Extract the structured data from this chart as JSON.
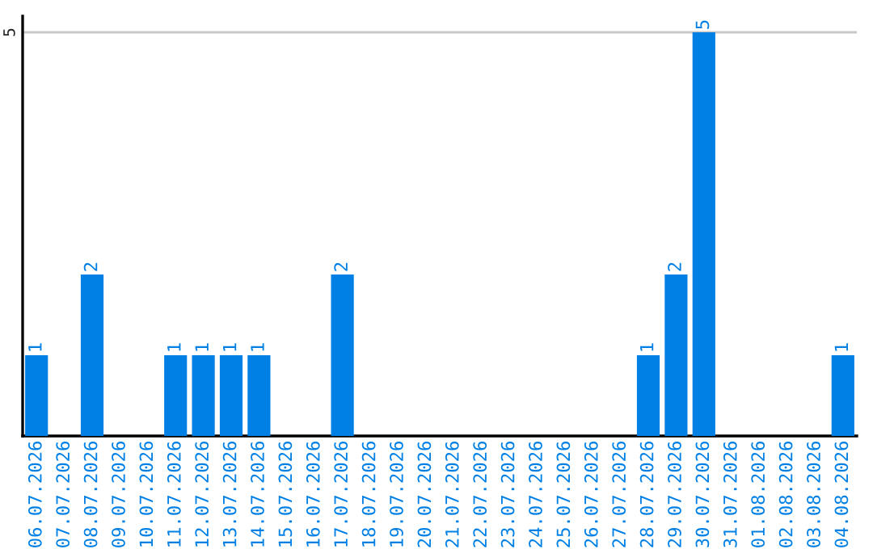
{
  "chart_data": {
    "type": "bar",
    "categories": [
      "06.07.2026",
      "07.07.2026",
      "08.07.2026",
      "09.07.2026",
      "10.07.2026",
      "11.07.2026",
      "12.07.2026",
      "13.07.2026",
      "14.07.2026",
      "15.07.2026",
      "16.07.2026",
      "17.07.2026",
      "18.07.2026",
      "19.07.2026",
      "20.07.2026",
      "21.07.2026",
      "22.07.2026",
      "23.07.2026",
      "24.07.2026",
      "25.07.2026",
      "26.07.2026",
      "27.07.2026",
      "28.07.2026",
      "29.07.2026",
      "30.07.2026",
      "31.07.2026",
      "01.08.2026",
      "02.08.2026",
      "03.08.2026",
      "04.08.2026"
    ],
    "values": [
      1,
      0,
      2,
      0,
      0,
      1,
      1,
      1,
      1,
      0,
      0,
      2,
      0,
      0,
      0,
      0,
      0,
      0,
      0,
      0,
      0,
      0,
      1,
      2,
      5,
      0,
      0,
      0,
      0,
      1
    ],
    "value_labels": [
      "1",
      null,
      "2",
      null,
      null,
      "1",
      "1",
      "1",
      "1",
      null,
      null,
      "2",
      null,
      null,
      null,
      null,
      null,
      null,
      null,
      null,
      null,
      null,
      "1",
      "2",
      "5",
      null,
      null,
      null,
      null,
      "1"
    ],
    "color": "#0080e5",
    "ylim": [
      0,
      5.2
    ],
    "yticks": [
      5
    ],
    "grid": "y"
  }
}
